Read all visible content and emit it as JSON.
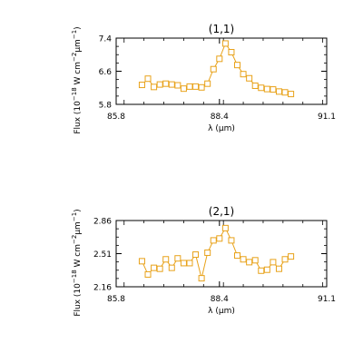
{
  "colors": {
    "series": "#e8a21a",
    "axes": "#000000",
    "background": "#ffffff"
  },
  "chart_data": [
    {
      "type": "line",
      "marker": "square",
      "title": "(1,1)",
      "xlabel": "λ (μm)",
      "ylabel_main": "Flux (10",
      "ylabel_sup1": "−18",
      "ylabel_mid": " W cm",
      "ylabel_sup2": "−2",
      "ylabel_unit": "μm",
      "ylabel_sup3": "−1",
      "ylabel_end": ")",
      "xlim": [
        85.8,
        91.1
      ],
      "ylim": [
        5.8,
        7.4
      ],
      "x_ticks": [
        85.8,
        88.4,
        91.1
      ],
      "x_tick_labels": [
        "85.8",
        "88.4",
        "91.1"
      ],
      "y_ticks": [
        5.8,
        6.6,
        7.4
      ],
      "y_tick_labels": [
        "5.8",
        "6.6",
        "7.4"
      ],
      "grid": false,
      "series": [
        {
          "x": [
            86.45,
            86.6,
            86.75,
            86.9,
            87.05,
            87.2,
            87.35,
            87.5,
            87.65,
            87.8,
            87.95,
            88.1,
            88.25,
            88.4,
            88.55,
            88.7,
            88.85,
            89.0,
            89.15,
            89.3,
            89.45,
            89.6,
            89.75,
            89.9,
            90.05,
            90.2
          ],
          "y": [
            6.27,
            6.42,
            6.22,
            6.28,
            6.3,
            6.28,
            6.26,
            6.18,
            6.23,
            6.23,
            6.21,
            6.3,
            6.65,
            6.9,
            7.27,
            7.06,
            6.75,
            6.53,
            6.43,
            6.25,
            6.2,
            6.17,
            6.16,
            6.11,
            6.09,
            6.05
          ]
        }
      ]
    },
    {
      "type": "line",
      "marker": "square",
      "title": "(2,1)",
      "xlabel": "λ (μm)",
      "ylabel_main": "Flux (10",
      "ylabel_sup1": "−18",
      "ylabel_mid": " W cm",
      "ylabel_sup2": "−2",
      "ylabel_unit": "μm",
      "ylabel_sup3": "−1",
      "ylabel_end": ")",
      "xlim": [
        85.8,
        91.1
      ],
      "ylim": [
        2.16,
        2.86
      ],
      "x_ticks": [
        85.8,
        88.4,
        91.1
      ],
      "x_tick_labels": [
        "85.8",
        "88.4",
        "91.1"
      ],
      "y_ticks": [
        2.16,
        2.51,
        2.86
      ],
      "y_tick_labels": [
        "2.16",
        "2.51",
        "2.86"
      ],
      "grid": false,
      "series": [
        {
          "x": [
            86.45,
            86.6,
            86.75,
            86.9,
            87.05,
            87.2,
            87.35,
            87.5,
            87.65,
            87.8,
            87.95,
            88.1,
            88.25,
            88.4,
            88.55,
            88.7,
            88.85,
            89.0,
            89.15,
            89.3,
            89.45,
            89.6,
            89.75,
            89.9,
            90.05,
            90.2
          ],
          "y": [
            2.43,
            2.29,
            2.36,
            2.35,
            2.45,
            2.36,
            2.46,
            2.41,
            2.41,
            2.5,
            2.25,
            2.52,
            2.65,
            2.67,
            2.78,
            2.65,
            2.49,
            2.45,
            2.42,
            2.44,
            2.33,
            2.34,
            2.42,
            2.35,
            2.45,
            2.48
          ]
        }
      ]
    }
  ]
}
